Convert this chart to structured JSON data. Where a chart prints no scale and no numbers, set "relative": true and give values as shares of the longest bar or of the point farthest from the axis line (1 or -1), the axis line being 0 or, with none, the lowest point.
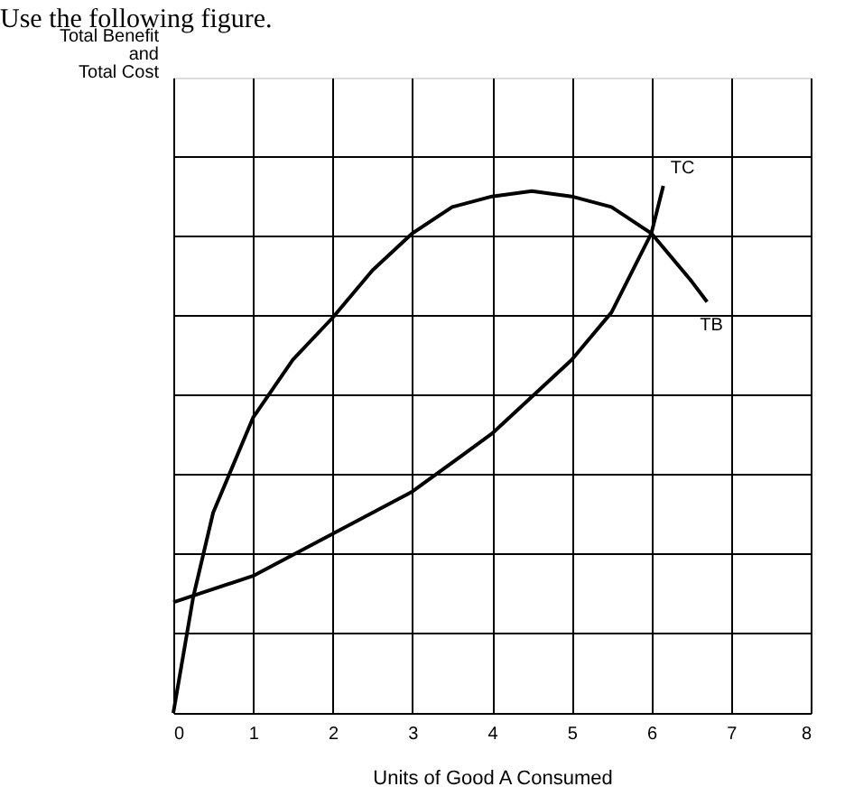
{
  "chart_data": {
    "type": "line",
    "title": "Use the following figure.",
    "xlabel": "Units of Good A Consumed",
    "annotations": [
      "Total Benefit\nand\nTotal Cost"
    ],
    "relative": true,
    "xlim": [
      0,
      8
    ],
    "xticks": [
      0,
      1,
      2,
      3,
      4,
      5,
      6,
      7,
      8
    ],
    "grid": true,
    "marker": "none",
    "line_style": "solid",
    "series": [
      {
        "name": "TB",
        "color": "#000000",
        "x": [
          0,
          0.25,
          0.5,
          1,
          1.5,
          2,
          2.5,
          3,
          3.5,
          4,
          4.5,
          5,
          5.5,
          6,
          6.5,
          6.7
        ],
        "values": [
          0,
          0.22,
          0.38,
          0.56,
          0.67,
          0.75,
          0.84,
          0.91,
          0.96,
          0.98,
          0.99,
          0.98,
          0.96,
          0.91,
          0.82,
          0.78
        ]
      },
      {
        "name": "TC",
        "color": "#000000",
        "x": [
          0,
          1,
          2,
          3,
          4,
          5,
          5.5,
          6,
          6.15
        ],
        "values": [
          0.21,
          0.26,
          0.34,
          0.42,
          0.53,
          0.67,
          0.76,
          0.91,
          1.0
        ]
      }
    ]
  }
}
